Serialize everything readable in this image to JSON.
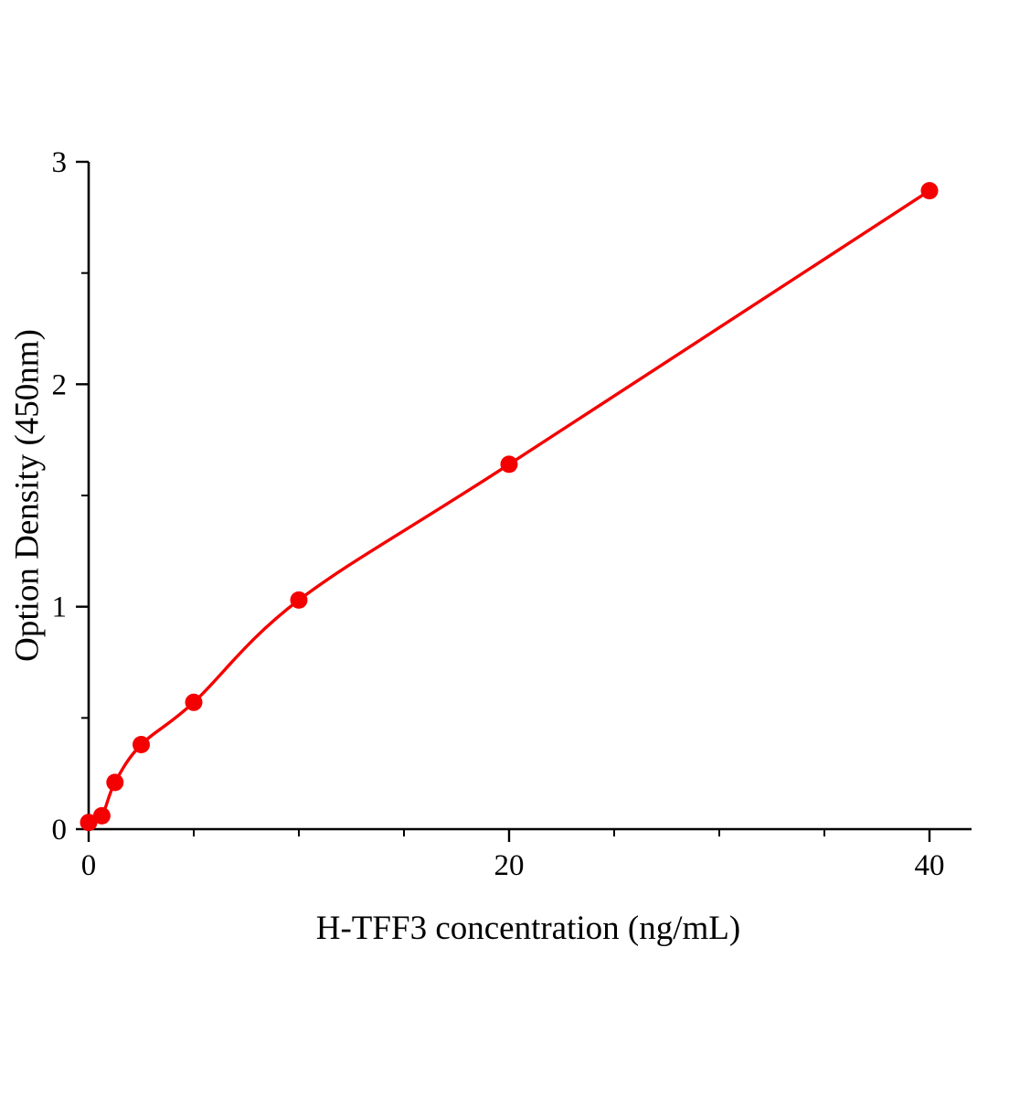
{
  "chart_data": {
    "type": "scatter",
    "title": "",
    "xlabel": "H-TFF3 concentration (ng/mL)",
    "ylabel": "Option Density (450nm)",
    "x": [
      0,
      0.625,
      1.25,
      2.5,
      5,
      10,
      20,
      40
    ],
    "y": [
      0.03,
      0.06,
      0.21,
      0.38,
      0.57,
      1.03,
      1.64,
      2.87
    ],
    "curve": "smooth power-type fit through the standard points",
    "xlim": [
      0,
      42
    ],
    "ylim": [
      0,
      3
    ],
    "x_ticks": [
      0,
      20,
      40
    ],
    "y_ticks": [
      0,
      1,
      2,
      3
    ],
    "x_minor_step": 5,
    "y_minor_step": 0.5,
    "grid": false,
    "legend": "none",
    "colors": {
      "series": "#f40000",
      "axis": "#000000",
      "background": "#ffffff"
    }
  }
}
